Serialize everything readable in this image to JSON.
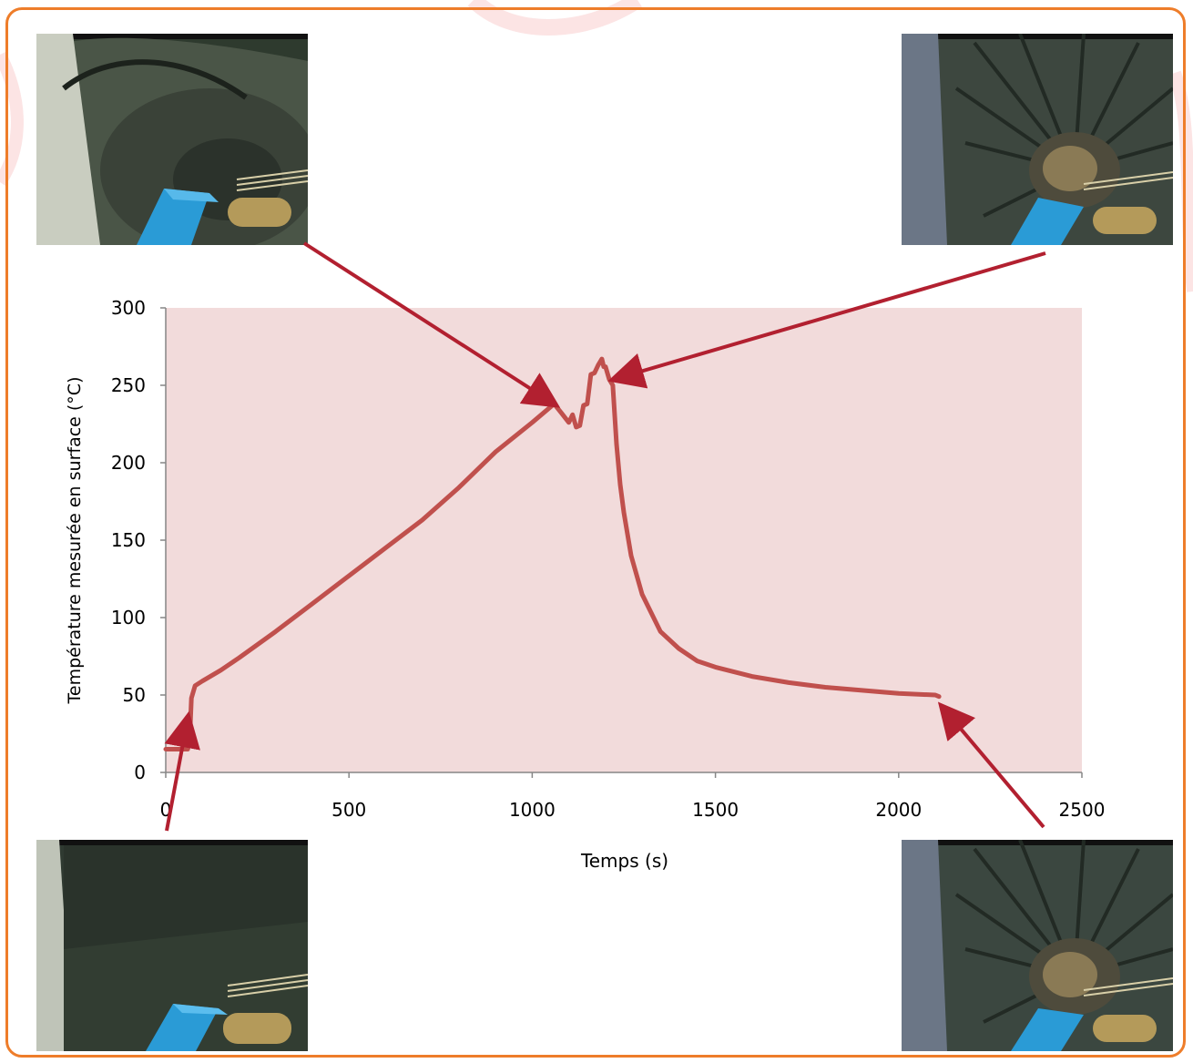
{
  "colors": {
    "frame": "#ee7d2a",
    "plot_area": "#f2dbdb",
    "series": "#c0504d",
    "arrow": "#b22030",
    "axis": "#868686"
  },
  "photos": [
    {
      "id": "top-left",
      "description_icon": "camera-photo"
    },
    {
      "id": "top-right",
      "description_icon": "camera-photo"
    },
    {
      "id": "bottom-left",
      "description_icon": "camera-photo"
    },
    {
      "id": "bottom-right",
      "description_icon": "camera-photo"
    }
  ],
  "chart_data": {
    "type": "line",
    "title": "",
    "xlabel": "Temps (s)",
    "ylabel": "Température mesurée en surface (°C)",
    "xlim": [
      0,
      2500
    ],
    "ylim": [
      0,
      300
    ],
    "xticks": [
      0,
      500,
      1000,
      1500,
      2000,
      2500
    ],
    "yticks": [
      0,
      50,
      100,
      150,
      200,
      250,
      300
    ],
    "grid": false,
    "legend": "none",
    "series": [
      {
        "x": [
          0,
          40,
          60,
          65,
          70,
          80,
          100,
          150,
          200,
          300,
          400,
          500,
          600,
          700,
          800,
          900,
          1000,
          1040,
          1060,
          1080,
          1100,
          1110,
          1120,
          1130,
          1140,
          1150,
          1160,
          1170,
          1180,
          1190,
          1195,
          1200,
          1210,
          1215,
          1220,
          1230,
          1240,
          1250,
          1270,
          1300,
          1350,
          1400,
          1450,
          1500,
          1600,
          1700,
          1800,
          1900,
          2000,
          2100,
          2110
        ],
        "y": [
          15,
          15,
          15,
          20,
          48,
          56,
          59,
          66,
          74,
          91,
          109,
          127,
          145,
          163,
          184,
          207,
          226,
          234,
          238,
          232,
          226,
          231,
          223,
          224,
          237,
          238,
          257,
          258,
          263,
          267,
          262,
          262,
          254,
          252,
          250,
          212,
          186,
          168,
          140,
          115,
          91,
          80,
          72,
          68,
          62,
          58,
          55,
          53,
          51,
          50,
          49
        ]
      }
    ]
  }
}
